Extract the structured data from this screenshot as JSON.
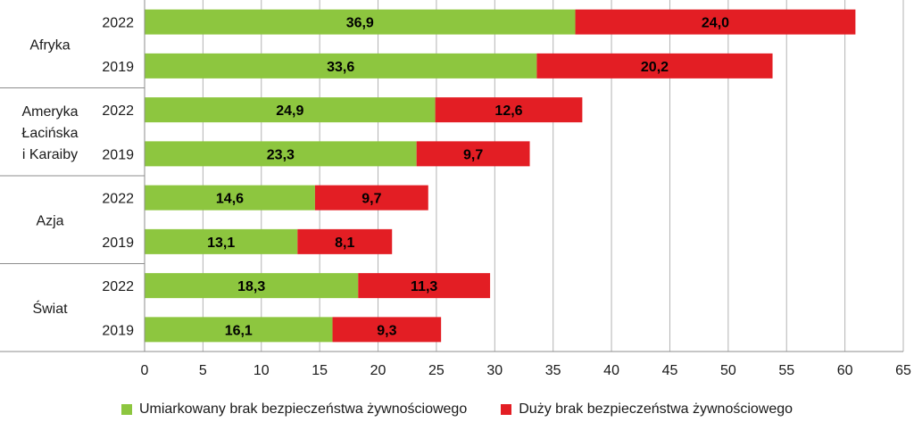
{
  "chart_data": {
    "type": "bar",
    "orientation": "horizontal",
    "stacked": true,
    "groups": [
      {
        "label": "Afryka",
        "rows": [
          {
            "year": "2022",
            "values": [
              36.9,
              24.0
            ],
            "labels": [
              "36,9",
              "24,0"
            ]
          },
          {
            "year": "2019",
            "values": [
              33.6,
              20.2
            ],
            "labels": [
              "33,6",
              "20,2"
            ]
          }
        ]
      },
      {
        "label": "Ameryka Łacińska i Karaiby",
        "label_lines": [
          "Ameryka",
          "Łacińska",
          "i Karaiby"
        ],
        "rows": [
          {
            "year": "2022",
            "values": [
              24.9,
              12.6
            ],
            "labels": [
              "24,9",
              "12,6"
            ]
          },
          {
            "year": "2019",
            "values": [
              23.3,
              9.7
            ],
            "labels": [
              "23,3",
              "9,7"
            ]
          }
        ]
      },
      {
        "label": "Azja",
        "rows": [
          {
            "year": "2022",
            "values": [
              14.6,
              9.7
            ],
            "labels": [
              "14,6",
              "9,7"
            ]
          },
          {
            "year": "2019",
            "values": [
              13.1,
              8.1
            ],
            "labels": [
              "13,1",
              "8,1"
            ]
          }
        ]
      },
      {
        "label": "Świat",
        "rows": [
          {
            "year": "2022",
            "values": [
              18.3,
              11.3
            ],
            "labels": [
              "18,3",
              "11,3"
            ]
          },
          {
            "year": "2019",
            "values": [
              16.1,
              9.3
            ],
            "labels": [
              "16,1",
              "9,3"
            ]
          }
        ]
      }
    ],
    "series": [
      {
        "name": "Umiarkowany brak bezpieczeństwa żywnościowego",
        "color": "#8dc63f"
      },
      {
        "name": "Duży brak bezpieczeństwa żywnościowego",
        "color": "#e31e24"
      }
    ],
    "xlim": [
      0,
      65
    ],
    "xticks": [
      0,
      5,
      10,
      15,
      20,
      25,
      30,
      35,
      40,
      45,
      50,
      55,
      60,
      65
    ],
    "grid": true,
    "legend_position": "bottom"
  }
}
